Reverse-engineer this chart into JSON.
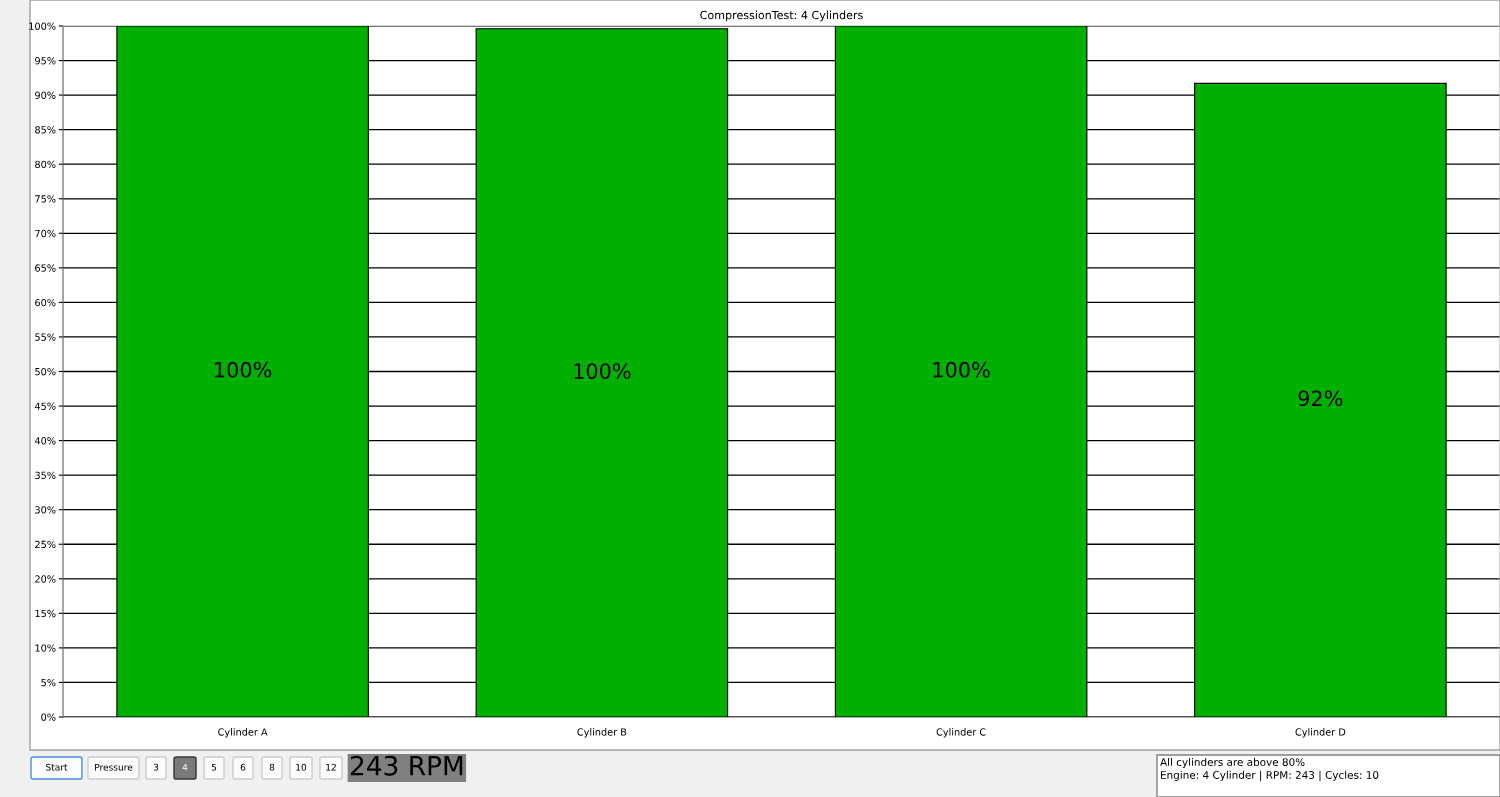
{
  "chart_data": {
    "type": "bar",
    "title": "CompressionTest: 4 Cylinders",
    "categories": [
      "Cylinder A",
      "Cylinder B",
      "Cylinder C",
      "Cylinder D"
    ],
    "values": [
      100,
      99.6,
      100,
      91.7
    ],
    "value_labels": [
      "100%",
      "100%",
      "100%",
      "92%"
    ],
    "color": "#00b000",
    "ylim": [
      0,
      100
    ],
    "yticks": [
      {
        "value": 0,
        "label": "0%"
      },
      {
        "value": 5,
        "label": "5%"
      },
      {
        "value": 10,
        "label": "10%"
      },
      {
        "value": 15,
        "label": "15%"
      },
      {
        "value": 20,
        "label": "20%"
      },
      {
        "value": 25,
        "label": "25%"
      },
      {
        "value": 30,
        "label": "30%"
      },
      {
        "value": 35,
        "label": "35%"
      },
      {
        "value": 40,
        "label": "40%"
      },
      {
        "value": 45,
        "label": "45%"
      },
      {
        "value": 50,
        "label": "50%"
      },
      {
        "value": 55,
        "label": "55%"
      },
      {
        "value": 60,
        "label": "60%"
      },
      {
        "value": 65,
        "label": "65%"
      },
      {
        "value": 70,
        "label": "70%"
      },
      {
        "value": 75,
        "label": "75%"
      },
      {
        "value": 80,
        "label": "80%"
      },
      {
        "value": 85,
        "label": "85%"
      },
      {
        "value": 90,
        "label": "90%"
      },
      {
        "value": 95,
        "label": "95%"
      },
      {
        "value": 100,
        "label": "100%"
      }
    ],
    "grid": "y",
    "annotations": [
      "Start",
      "Pressure",
      "3",
      "4",
      "5",
      "6",
      "8",
      "10",
      "12",
      "243 RPM",
      "All cylinders are above 80%",
      "Engine: 4 Cylinder | RPM: 243 | Cycles: 10"
    ]
  }
}
